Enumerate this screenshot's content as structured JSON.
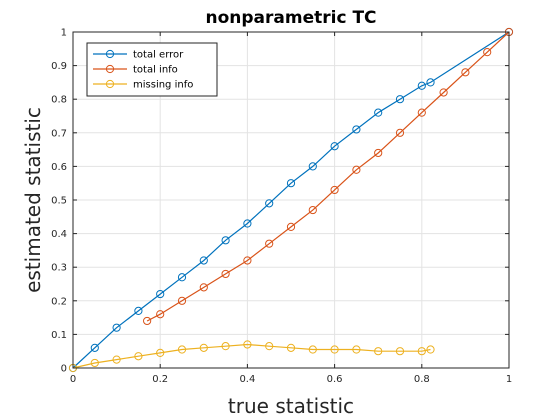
{
  "chart_data": {
    "type": "line",
    "title": "nonparametric TC",
    "xlabel": "true statistic",
    "ylabel": "estimated statistic",
    "xlim": [
      0,
      1
    ],
    "ylim": [
      0,
      1
    ],
    "xticks": [
      "0",
      "0.2",
      "0.4",
      "0.6",
      "0.8",
      "1"
    ],
    "yticks": [
      "0",
      "0.1",
      "0.2",
      "0.3",
      "0.4",
      "0.5",
      "0.6",
      "0.7",
      "0.8",
      "0.9",
      "1"
    ],
    "grid": true,
    "legend_position": "top-left",
    "series": [
      {
        "name": "total error",
        "color": "#0072BD",
        "marker": "circle",
        "x": [
          0,
          0.05,
          0.1,
          0.15,
          0.2,
          0.25,
          0.3,
          0.35,
          0.4,
          0.45,
          0.5,
          0.55,
          0.6,
          0.65,
          0.7,
          0.75,
          0.8,
          0.82,
          1.0
        ],
        "y": [
          0,
          0.06,
          0.12,
          0.17,
          0.22,
          0.27,
          0.32,
          0.38,
          0.43,
          0.49,
          0.55,
          0.6,
          0.66,
          0.71,
          0.76,
          0.8,
          0.84,
          0.85,
          1.0
        ]
      },
      {
        "name": "total info",
        "color": "#D95319",
        "marker": "circle",
        "x": [
          0.17,
          0.2,
          0.25,
          0.3,
          0.35,
          0.4,
          0.45,
          0.5,
          0.55,
          0.6,
          0.65,
          0.7,
          0.75,
          0.8,
          0.85,
          0.9,
          0.95,
          1.0
        ],
        "y": [
          0.14,
          0.16,
          0.2,
          0.24,
          0.28,
          0.32,
          0.37,
          0.42,
          0.47,
          0.53,
          0.59,
          0.64,
          0.7,
          0.76,
          0.82,
          0.88,
          0.94,
          1.0
        ]
      },
      {
        "name": "missing info",
        "color": "#EDB120",
        "marker": "circle",
        "x": [
          0,
          0.05,
          0.1,
          0.15,
          0.2,
          0.25,
          0.3,
          0.35,
          0.4,
          0.45,
          0.5,
          0.55,
          0.6,
          0.65,
          0.7,
          0.75,
          0.8,
          0.82
        ],
        "y": [
          0,
          0.015,
          0.025,
          0.035,
          0.045,
          0.055,
          0.06,
          0.065,
          0.07,
          0.065,
          0.06,
          0.055,
          0.055,
          0.055,
          0.05,
          0.05,
          0.05,
          0.055
        ]
      }
    ]
  }
}
